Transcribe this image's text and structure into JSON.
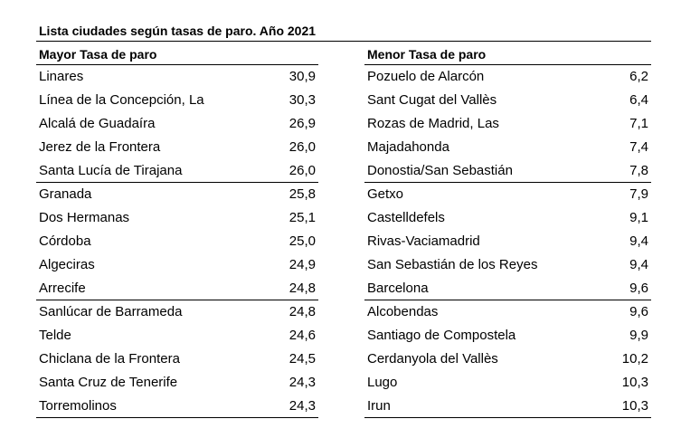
{
  "title": "Lista ciudades según tasas de paro. Año 2021",
  "left": {
    "header": "Mayor Tasa de paro",
    "rows": [
      {
        "city": "Linares",
        "rate": "30,9"
      },
      {
        "city": "Línea de la Concepción, La",
        "rate": "30,3"
      },
      {
        "city": "Alcalá de Guadaíra",
        "rate": "26,9"
      },
      {
        "city": "Jerez de la Frontera",
        "rate": "26,0"
      },
      {
        "city": "Santa Lucía de Tirajana",
        "rate": "26,0"
      },
      {
        "city": "Granada",
        "rate": "25,8"
      },
      {
        "city": "Dos Hermanas",
        "rate": "25,1"
      },
      {
        "city": "Córdoba",
        "rate": "25,0"
      },
      {
        "city": "Algeciras",
        "rate": "24,9"
      },
      {
        "city": "Arrecife",
        "rate": "24,8"
      },
      {
        "city": "Sanlúcar de Barrameda",
        "rate": "24,8"
      },
      {
        "city": "Telde",
        "rate": "24,6"
      },
      {
        "city": "Chiclana de la Frontera",
        "rate": "24,5"
      },
      {
        "city": "Santa Cruz de Tenerife",
        "rate": "24,3"
      },
      {
        "city": "Torremolinos",
        "rate": "24,3"
      }
    ]
  },
  "right": {
    "header": "Menor Tasa de paro",
    "rows": [
      {
        "city": "Pozuelo de Alarcón",
        "rate": "6,2"
      },
      {
        "city": "Sant Cugat del Vallès",
        "rate": "6,4"
      },
      {
        "city": "Rozas de Madrid, Las",
        "rate": "7,1"
      },
      {
        "city": "Majadahonda",
        "rate": "7,4"
      },
      {
        "city": "Donostia/San Sebastián",
        "rate": "7,8"
      },
      {
        "city": "Getxo",
        "rate": "7,9"
      },
      {
        "city": "Castelldefels",
        "rate": "9,1"
      },
      {
        "city": "Rivas-Vaciamadrid",
        "rate": "9,4"
      },
      {
        "city": "San Sebastián de los Reyes",
        "rate": "9,4"
      },
      {
        "city": "Barcelona",
        "rate": "9,6"
      },
      {
        "city": "Alcobendas",
        "rate": "9,6"
      },
      {
        "city": "Santiago de Compostela",
        "rate": "9,9"
      },
      {
        "city": "Cerdanyola del Vallès",
        "rate": "10,2"
      },
      {
        "city": "Lugo",
        "rate": "10,3"
      },
      {
        "city": "Irun",
        "rate": "10,3"
      }
    ]
  }
}
